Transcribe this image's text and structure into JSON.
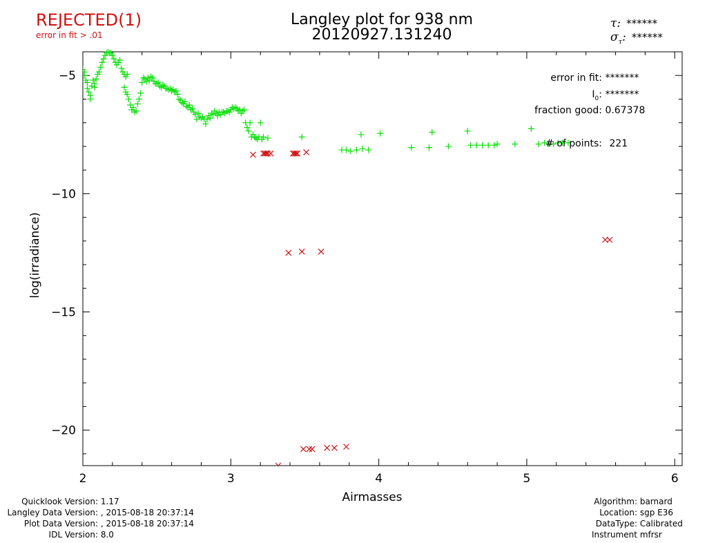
{
  "header": {
    "status": "REJECTED(1)",
    "status_detail": "error in fit > .01",
    "title_line1": "Langley plot for 938 nm",
    "title_line2": "20120927.131240",
    "tau_value": "******",
    "sigma_tau_value": "******"
  },
  "fit_info": {
    "error_label": "error in fit:",
    "error_value": "*******",
    "i0_label": "I",
    "i0_sub": "0",
    "i0_value": "*******",
    "fraction_label": "fraction good:",
    "fraction_value": "0.67378",
    "points_label": "# of points:",
    "points_value": "221"
  },
  "footer_left": [
    {
      "label": "Quicklook Version:",
      "value": "1.17"
    },
    {
      "label": "Langley Data Version:",
      "value": ", 2015-08-18 20:37:14"
    },
    {
      "label": "Plot Data Version:",
      "value": ", 2015-08-18 20:37:14"
    },
    {
      "label": "IDL Version:",
      "value": "8.0"
    }
  ],
  "footer_right": [
    {
      "label": "Algorithm:",
      "value": "barnard"
    },
    {
      "label": "Location:",
      "value": "sgp E36"
    },
    {
      "label": "DataType:",
      "value": "Calibrated"
    },
    {
      "label": "Instrument",
      "value": "mfrsr"
    }
  ],
  "colors": {
    "good": "#00e000",
    "rejected": "#d01010",
    "axis": "#000000"
  },
  "chart_data": {
    "type": "scatter",
    "title": "Langley plot for 938 nm",
    "xlabel": "Airmasses",
    "ylabel": "log(irradiance)",
    "xlim": [
      2,
      6.05
    ],
    "ylim": [
      -21.5,
      -4.0
    ],
    "xticks": [
      2,
      3,
      4,
      5,
      6
    ],
    "yticks": [
      -5,
      -10,
      -15,
      -20
    ],
    "grid": false,
    "series": [
      {
        "marker": "+",
        "color": "#00e000",
        "points": [
          [
            2.0,
            -4.75
          ],
          [
            2.01,
            -4.85
          ],
          [
            2.01,
            -5.0
          ],
          [
            2.02,
            -5.2
          ],
          [
            2.03,
            -5.3
          ],
          [
            2.03,
            -5.55
          ],
          [
            2.04,
            -5.7
          ],
          [
            2.05,
            -6.0
          ],
          [
            2.05,
            -5.85
          ],
          [
            2.06,
            -5.45
          ],
          [
            2.07,
            -5.2
          ],
          [
            2.08,
            -5.35
          ],
          [
            2.08,
            -5.5
          ],
          [
            2.09,
            -5.15
          ],
          [
            2.1,
            -4.95
          ],
          [
            2.11,
            -4.85
          ],
          [
            2.12,
            -4.65
          ],
          [
            2.13,
            -4.45
          ],
          [
            2.14,
            -4.3
          ],
          [
            2.15,
            -4.15
          ],
          [
            2.16,
            -4.05
          ],
          [
            2.17,
            -4.0
          ],
          [
            2.18,
            -4.05
          ],
          [
            2.19,
            -4.05
          ],
          [
            2.2,
            -4.15
          ],
          [
            2.21,
            -4.3
          ],
          [
            2.22,
            -4.45
          ],
          [
            2.23,
            -4.55
          ],
          [
            2.24,
            -4.45
          ],
          [
            2.25,
            -4.35
          ],
          [
            2.26,
            -4.7
          ],
          [
            2.27,
            -4.85
          ],
          [
            2.28,
            -4.95
          ],
          [
            2.29,
            -5.05
          ],
          [
            2.3,
            -4.95
          ],
          [
            2.28,
            -5.5
          ],
          [
            2.29,
            -5.7
          ],
          [
            2.3,
            -5.8
          ],
          [
            2.31,
            -6.0
          ],
          [
            2.32,
            -6.25
          ],
          [
            2.33,
            -6.45
          ],
          [
            2.34,
            -6.35
          ],
          [
            2.35,
            -6.55
          ],
          [
            2.36,
            -6.5
          ],
          [
            2.37,
            -6.2
          ],
          [
            2.38,
            -6.0
          ],
          [
            2.39,
            -5.75
          ],
          [
            2.4,
            -5.3
          ],
          [
            2.41,
            -5.1
          ],
          [
            2.42,
            -5.15
          ],
          [
            2.43,
            -5.25
          ],
          [
            2.44,
            -5.1
          ],
          [
            2.45,
            -5.2
          ],
          [
            2.46,
            -5.05
          ],
          [
            2.47,
            -5.1
          ],
          [
            2.48,
            -5.25
          ],
          [
            2.49,
            -5.35
          ],
          [
            2.5,
            -5.35
          ],
          [
            2.51,
            -5.3
          ],
          [
            2.52,
            -5.45
          ],
          [
            2.53,
            -5.5
          ],
          [
            2.54,
            -5.4
          ],
          [
            2.55,
            -5.45
          ],
          [
            2.56,
            -5.55
          ],
          [
            2.57,
            -5.55
          ],
          [
            2.58,
            -5.6
          ],
          [
            2.59,
            -5.55
          ],
          [
            2.6,
            -5.65
          ],
          [
            2.61,
            -5.6
          ],
          [
            2.62,
            -5.7
          ],
          [
            2.63,
            -5.65
          ],
          [
            2.64,
            -5.8
          ],
          [
            2.65,
            -6.0
          ],
          [
            2.66,
            -6.05
          ],
          [
            2.67,
            -6.15
          ],
          [
            2.68,
            -6.2
          ],
          [
            2.69,
            -6.1
          ],
          [
            2.7,
            -6.3
          ],
          [
            2.71,
            -6.35
          ],
          [
            2.72,
            -6.25
          ],
          [
            2.73,
            -6.45
          ],
          [
            2.74,
            -6.4
          ],
          [
            2.75,
            -6.55
          ],
          [
            2.76,
            -6.65
          ],
          [
            2.77,
            -6.85
          ],
          [
            2.78,
            -6.6
          ],
          [
            2.79,
            -6.75
          ],
          [
            2.8,
            -6.8
          ],
          [
            2.81,
            -6.75
          ],
          [
            2.82,
            -6.85
          ],
          [
            2.83,
            -7.05
          ],
          [
            2.84,
            -6.85
          ],
          [
            2.85,
            -6.7
          ],
          [
            2.86,
            -6.8
          ],
          [
            2.87,
            -6.6
          ],
          [
            2.88,
            -6.65
          ],
          [
            2.89,
            -6.5
          ],
          [
            2.9,
            -6.6
          ],
          [
            2.91,
            -6.7
          ],
          [
            2.92,
            -6.55
          ],
          [
            2.93,
            -6.65
          ],
          [
            2.94,
            -6.55
          ],
          [
            2.95,
            -6.55
          ],
          [
            2.96,
            -6.6
          ],
          [
            2.97,
            -6.5
          ],
          [
            2.98,
            -6.5
          ],
          [
            2.99,
            -6.55
          ],
          [
            3.0,
            -6.45
          ],
          [
            3.01,
            -6.35
          ],
          [
            3.02,
            -6.4
          ],
          [
            3.03,
            -6.35
          ],
          [
            3.04,
            -6.4
          ],
          [
            3.05,
            -6.5
          ],
          [
            3.06,
            -6.45
          ],
          [
            3.07,
            -6.6
          ],
          [
            3.08,
            -6.5
          ],
          [
            3.09,
            -6.45
          ],
          [
            3.1,
            -7.0
          ],
          [
            3.11,
            -7.2
          ],
          [
            3.12,
            -7.35
          ],
          [
            3.13,
            -7.0
          ],
          [
            3.14,
            -7.6
          ],
          [
            3.15,
            -7.5
          ],
          [
            3.16,
            -7.6
          ],
          [
            3.17,
            -7.65
          ],
          [
            3.18,
            -7.7
          ],
          [
            3.19,
            -7.6
          ],
          [
            3.2,
            -7.0
          ],
          [
            3.21,
            -7.7
          ],
          [
            3.22,
            -7.6
          ],
          [
            3.25,
            -7.65
          ],
          [
            3.48,
            -7.6
          ],
          [
            3.75,
            -8.15
          ],
          [
            3.78,
            -8.15
          ],
          [
            3.81,
            -8.2
          ],
          [
            3.85,
            -8.15
          ],
          [
            3.89,
            -8.1
          ],
          [
            3.93,
            -8.15
          ],
          [
            3.88,
            -7.5
          ],
          [
            4.01,
            -7.45
          ],
          [
            4.22,
            -8.05
          ],
          [
            4.34,
            -8.05
          ],
          [
            4.36,
            -7.4
          ],
          [
            4.47,
            -8.0
          ],
          [
            4.6,
            -7.35
          ],
          [
            4.62,
            -7.95
          ],
          [
            4.66,
            -7.95
          ],
          [
            4.7,
            -7.95
          ],
          [
            4.74,
            -7.95
          ],
          [
            4.78,
            -7.95
          ],
          [
            4.8,
            -7.9
          ],
          [
            4.92,
            -7.9
          ],
          [
            5.03,
            -7.25
          ],
          [
            5.08,
            -7.9
          ],
          [
            5.12,
            -7.85
          ],
          [
            5.15,
            -7.9
          ],
          [
            5.18,
            -7.9
          ],
          [
            5.21,
            -7.85
          ],
          [
            5.24,
            -7.85
          ],
          [
            5.28,
            -7.85
          ]
        ]
      },
      {
        "marker": "x",
        "color": "#d01010",
        "points": [
          [
            3.15,
            -8.35
          ],
          [
            3.22,
            -8.3
          ],
          [
            3.23,
            -8.3
          ],
          [
            3.24,
            -8.3
          ],
          [
            3.25,
            -8.3
          ],
          [
            3.27,
            -8.3
          ],
          [
            3.42,
            -8.3
          ],
          [
            3.43,
            -8.3
          ],
          [
            3.44,
            -8.3
          ],
          [
            3.45,
            -8.3
          ],
          [
            3.51,
            -8.25
          ],
          [
            3.39,
            -12.5
          ],
          [
            3.48,
            -12.45
          ],
          [
            3.61,
            -12.45
          ],
          [
            3.49,
            -20.8
          ],
          [
            3.53,
            -20.8
          ],
          [
            3.55,
            -20.8
          ],
          [
            3.65,
            -20.75
          ],
          [
            3.7,
            -20.75
          ],
          [
            3.78,
            -20.7
          ],
          [
            3.32,
            -21.5
          ],
          [
            5.53,
            -11.95
          ],
          [
            5.56,
            -11.95
          ]
        ]
      }
    ]
  }
}
